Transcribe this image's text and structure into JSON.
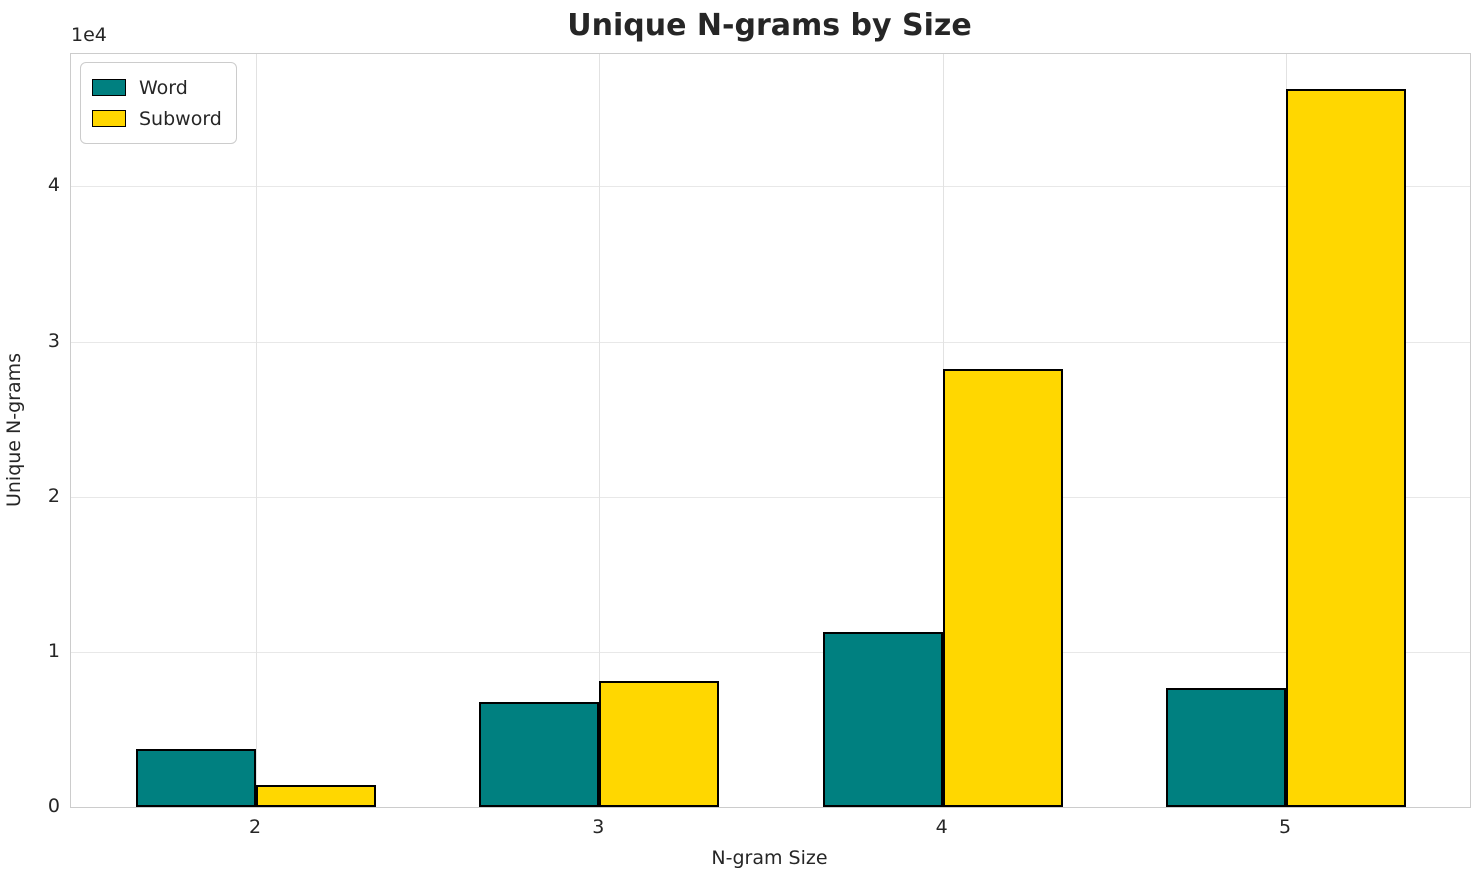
{
  "chart_data": {
    "type": "bar",
    "title": "Unique N-grams by Size",
    "xlabel": "N-gram Size",
    "ylabel": "Unique N-grams",
    "offset_text": "1e4",
    "categories": [
      "2",
      "3",
      "4",
      "5"
    ],
    "series": [
      {
        "name": "Word",
        "color": "#008080",
        "values": [
          3750,
          6800,
          11300,
          7650
        ]
      },
      {
        "name": "Subword",
        "color": "#FFD700",
        "values": [
          1400,
          8150,
          28200,
          46250
        ]
      }
    ],
    "bar_edge_color": "#000000",
    "ylim": [
      0,
      48535
    ],
    "yticks": [
      0,
      10000,
      20000,
      30000,
      40000
    ],
    "ytick_labels": [
      "0",
      "1",
      "2",
      "3",
      "4"
    ],
    "grid": true,
    "legend_position": "upper-left",
    "grid_color": "#e8e8e8",
    "spine_color": "#cccccc",
    "text_color": "#262626"
  }
}
